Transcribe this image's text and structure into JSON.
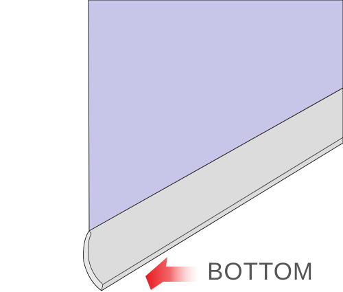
{
  "callout": {
    "label": "BOTTOM"
  },
  "colors": {
    "panel_fill": "#c8c6e8",
    "rail_fill": "#dcdcdc",
    "outline": "#222222",
    "arrow_red": "#e8191f",
    "label_gray": "#555555"
  },
  "icons": {
    "pointer": "arrow-left-icon"
  }
}
